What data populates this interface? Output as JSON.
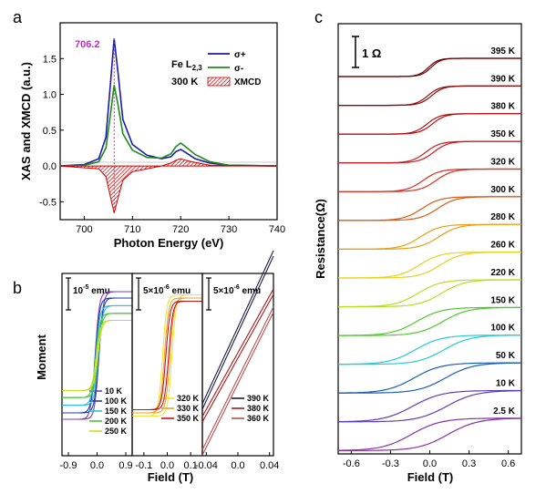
{
  "panels": {
    "a": "a",
    "b": "b",
    "c": "c"
  },
  "chart_data": [
    {
      "type": "line",
      "panel": "a",
      "xlabel": "Photon Energy (eV)",
      "ylabel": "XAS and XMCD (a.u.)",
      "xlim": [
        695,
        740
      ],
      "ylim": [
        -0.75,
        2.0
      ],
      "xticks": [
        "700",
        "710",
        "720",
        "730",
        "740"
      ],
      "yticks": [
        "-0.5",
        "0.0",
        "0.5",
        "1.0",
        "1.5"
      ],
      "annotations": {
        "peak": "706.2",
        "edge": "Fe L",
        "edge_sub": "2,3",
        "temperature": "300 K"
      },
      "legend_position": "top-right",
      "series": [
        {
          "name": "σ+",
          "color": "#1a1aa8",
          "x": [
            695,
            700,
            703,
            704.5,
            705.5,
            706.2,
            707,
            708,
            710,
            713,
            716,
            718,
            719,
            720,
            721,
            723,
            726,
            730,
            740
          ],
          "values": [
            0,
            0.02,
            0.1,
            0.4,
            1.2,
            1.78,
            1.3,
            0.65,
            0.3,
            0.15,
            0.1,
            0.13,
            0.2,
            0.23,
            0.19,
            0.1,
            0.04,
            0.01,
            0
          ]
        },
        {
          "name": "σ-",
          "color": "#1e8a1e",
          "x": [
            695,
            700,
            703,
            704.5,
            705.5,
            706.2,
            707,
            708,
            710,
            713,
            716,
            718,
            719,
            720,
            721,
            723,
            726,
            730,
            740
          ],
          "values": [
            0,
            0.01,
            0.06,
            0.25,
            0.75,
            1.13,
            0.85,
            0.45,
            0.22,
            0.12,
            0.11,
            0.17,
            0.27,
            0.32,
            0.27,
            0.16,
            0.06,
            0.01,
            0
          ]
        },
        {
          "name": "XMCD",
          "color": "#cc0000",
          "x": [
            695,
            703,
            704.5,
            705.5,
            706.2,
            707,
            708,
            710,
            716,
            718,
            719,
            720,
            721,
            723,
            726,
            740
          ],
          "values": [
            0,
            -0.04,
            -0.15,
            -0.45,
            -0.66,
            -0.45,
            -0.2,
            -0.08,
            0,
            0.04,
            0.08,
            0.1,
            0.08,
            0.05,
            0.01,
            0
          ]
        }
      ]
    },
    {
      "type": "line",
      "panel": "b",
      "xlabel": "Field (T)",
      "ylabel": "Moment",
      "subpanels": [
        {
          "scale": "10^-5 emu",
          "xlim": [
            -1.1,
            1.1
          ],
          "xticks": [
            "-0.9",
            "0.0",
            "0.9"
          ],
          "series": [
            {
              "name": "10 K",
              "color": "#7a3fb0",
              "ms": 1.0,
              "hc": 0.06
            },
            {
              "name": "100 K",
              "color": "#1b3fa8",
              "ms": 0.9,
              "hc": 0.05
            },
            {
              "name": "150 K",
              "color": "#28c0de",
              "ms": 0.78,
              "hc": 0.04
            },
            {
              "name": "200 K",
              "color": "#4fc43a",
              "ms": 0.66,
              "hc": 0.03
            },
            {
              "name": "250 K",
              "color": "#bfe21f",
              "ms": 0.55,
              "hc": 0.02
            }
          ]
        },
        {
          "scale": "5x10^-6 emu",
          "xlim": [
            -0.15,
            0.15
          ],
          "xticks": [
            "-0.1",
            "0.0",
            "0.1"
          ],
          "series": [
            {
              "name": "320 K",
              "color": "#f3e23b",
              "ms": 0.95,
              "hc": 0.02
            },
            {
              "name": "330 K",
              "color": "#e8a42c",
              "ms": 0.9,
              "hc": 0.012
            },
            {
              "name": "350 K",
              "color": "#cc1111",
              "ms": 0.85,
              "hc": 0.006
            }
          ]
        },
        {
          "scale": "5x10^-6 emu",
          "xlim": [
            -0.045,
            0.045
          ],
          "xticks": [
            "-0.04",
            "0.0",
            "0.04"
          ],
          "series": [
            {
              "name": "390 K",
              "color": "#1a1a40",
              "slope": 0.3,
              "offset": 0.7,
              "hc": 0.003
            },
            {
              "name": "380 K",
              "color": "#aa1a1a",
              "slope": 0.25,
              "offset": 0.0,
              "hc": 0.003
            },
            {
              "name": "360 K",
              "color": "#b85050",
              "slope": 0.28,
              "offset": -0.7,
              "hc": 0.003
            }
          ]
        }
      ]
    },
    {
      "type": "line",
      "panel": "c",
      "xlabel": "Field (T)",
      "ylabel": "Resistance(Ω)",
      "xlim": [
        -0.7,
        0.7
      ],
      "xticks": [
        "-0.6",
        "-0.3",
        "0.0",
        "0.3",
        "0.6"
      ],
      "scale_bar": "1 Ω",
      "series": [
        {
          "name": "395 K",
          "color": "#6b0000",
          "width": 0.15,
          "hys": 0.01
        },
        {
          "name": "390 K",
          "color": "#8b0a0a",
          "width": 0.18,
          "hys": 0.015
        },
        {
          "name": "380 K",
          "color": "#b01010",
          "width": 0.2,
          "hys": 0.02
        },
        {
          "name": "350 K",
          "color": "#cc1a1a",
          "width": 0.22,
          "hys": 0.03
        },
        {
          "name": "320 K",
          "color": "#d63020",
          "width": 0.25,
          "hys": 0.05
        },
        {
          "name": "300 K",
          "color": "#d85a12",
          "width": 0.28,
          "hys": 0.06
        },
        {
          "name": "280 K",
          "color": "#e8a015",
          "width": 0.3,
          "hys": 0.07
        },
        {
          "name": "260 K",
          "color": "#e8d220",
          "width": 0.32,
          "hys": 0.08
        },
        {
          "name": "220 K",
          "color": "#b5e020",
          "width": 0.35,
          "hys": 0.09
        },
        {
          "name": "150 K",
          "color": "#50c830",
          "width": 0.38,
          "hys": 0.1
        },
        {
          "name": "100 K",
          "color": "#28c8dc",
          "width": 0.4,
          "hys": 0.11
        },
        {
          "name": "50 K",
          "color": "#1b5eb5",
          "width": 0.42,
          "hys": 0.12
        },
        {
          "name": "10 K",
          "color": "#5a3fb5",
          "width": 0.45,
          "hys": 0.13
        },
        {
          "name": "2.5 K",
          "color": "#8a2fa8",
          "width": 0.45,
          "hys": 0.14
        }
      ]
    }
  ]
}
